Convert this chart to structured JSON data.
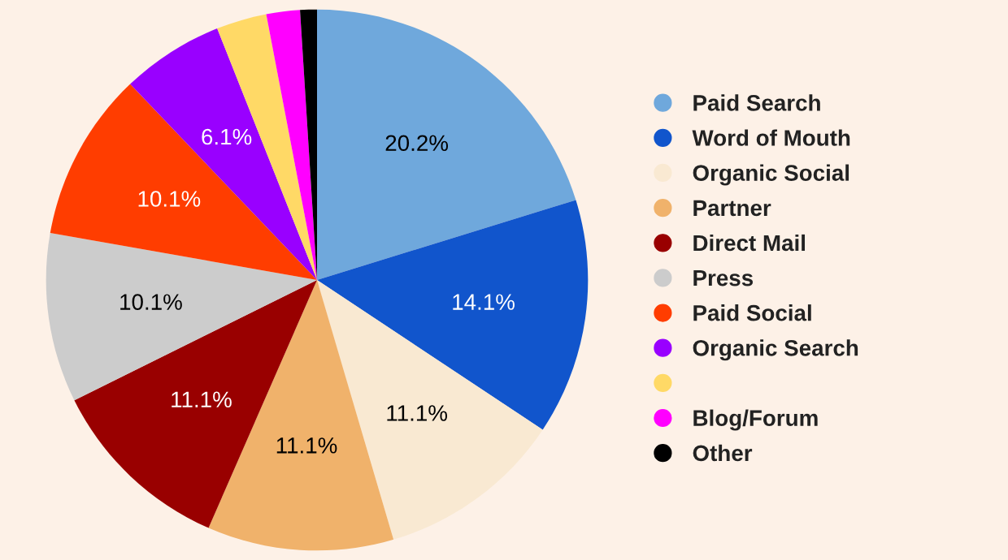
{
  "chart_data": {
    "type": "pie",
    "categories": [
      "Paid Search",
      "Word of Mouth",
      "Organic Social",
      "Partner",
      "Direct Mail",
      "Press",
      "Paid Social",
      "Organic Search",
      null,
      "Blog/Forum",
      "Other"
    ],
    "values": [
      20.2,
      14.1,
      11.1,
      11.1,
      11.1,
      10.1,
      10.1,
      6.1,
      3.0,
      2.0,
      1.0
    ],
    "value_labels": [
      "20.2%",
      "14.1%",
      "11.1%",
      "11.1%",
      "11.1%",
      "10.1%",
      "10.1%",
      "6.1%",
      null,
      null,
      null
    ],
    "colors": [
      "#6fa8dc",
      "#1155cc",
      "#f9e9d2",
      "#f0b26b",
      "#990000",
      "#cccccc",
      "#ff3d00",
      "#9900ff",
      "#ffd966",
      "#ff00ff",
      "#000000"
    ],
    "legend": "right"
  }
}
